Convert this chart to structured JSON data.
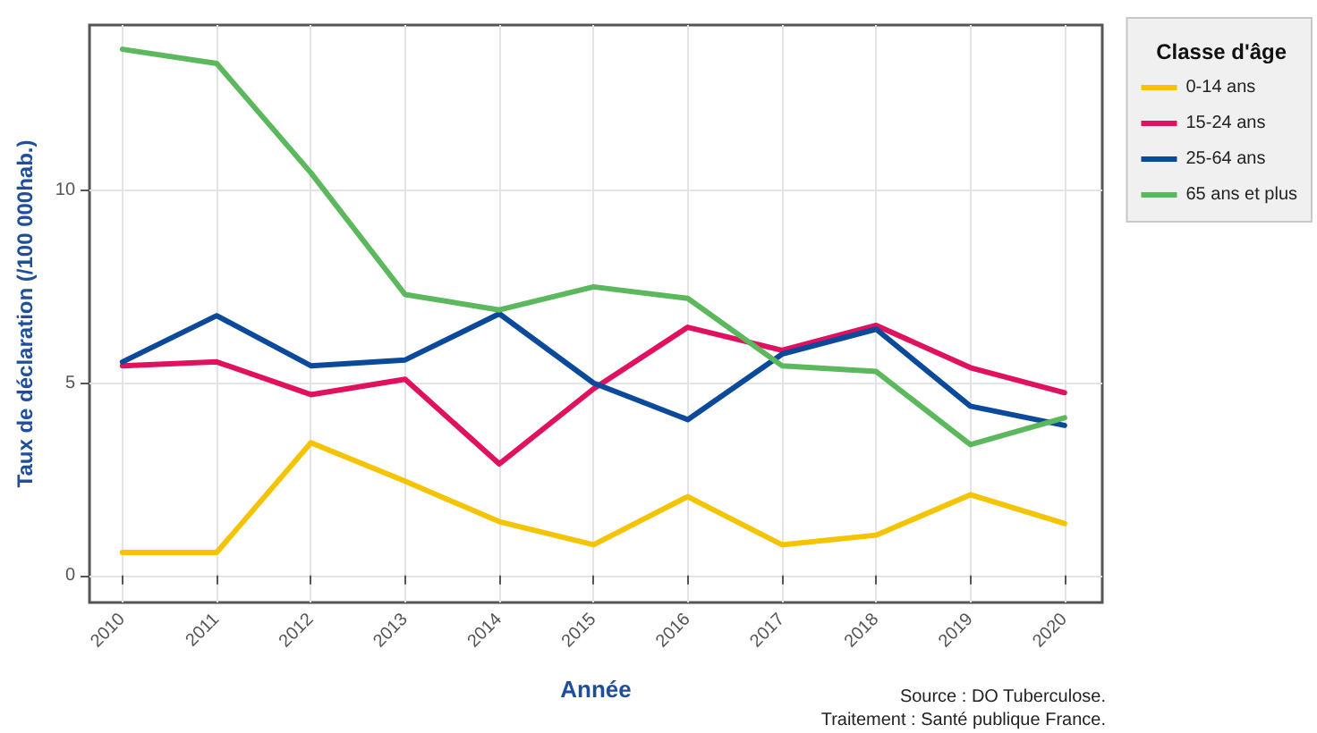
{
  "chart_data": {
    "type": "line",
    "xlabel": "Année",
    "ylabel": "Taux de déclaration (/100 000hab.)",
    "legend_title": "Classe d'âge",
    "x": [
      2010,
      2011,
      2012,
      2013,
      2014,
      2015,
      2016,
      2017,
      2018,
      2019,
      2020
    ],
    "series": [
      {
        "name": "0-14 ans",
        "color": "#f5c400",
        "values": [
          0.6,
          0.6,
          3.45,
          2.45,
          1.4,
          0.8,
          2.05,
          0.8,
          1.05,
          2.1,
          1.35
        ]
      },
      {
        "name": "15-24 ans",
        "color": "#e0115f",
        "values": [
          5.45,
          5.55,
          4.7,
          5.1,
          2.9,
          4.85,
          6.45,
          5.85,
          6.5,
          5.4,
          4.75
        ]
      },
      {
        "name": "25-64 ans",
        "color": "#0b4a9a",
        "values": [
          5.55,
          6.75,
          5.45,
          5.6,
          6.8,
          5.0,
          4.05,
          5.75,
          6.4,
          4.4,
          3.9
        ]
      },
      {
        "name": "65 ans et plus",
        "color": "#5cb85c",
        "values": [
          13.67,
          13.3,
          10.46,
          7.3,
          6.9,
          7.5,
          7.2,
          5.45,
          5.3,
          3.4,
          4.1
        ]
      }
    ],
    "xlim": [
      2009.65,
      2020.4
    ],
    "xticks": [
      2010,
      2011,
      2012,
      2013,
      2014,
      2015,
      2016,
      2017,
      2018,
      2019,
      2020
    ],
    "ylim": [
      -0.7,
      14.3
    ],
    "yticks": [
      0,
      5,
      10
    ],
    "grid": true,
    "legend": "right",
    "marker": "none",
    "line_style": "solid",
    "annotations": [
      "Source : DO Tuberculose.",
      "Traitement : Santé publique France."
    ]
  }
}
